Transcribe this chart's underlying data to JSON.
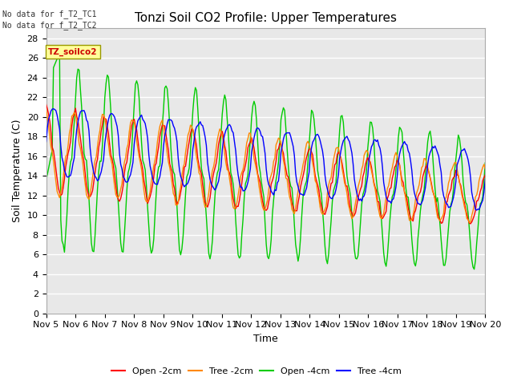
{
  "title": "Tonzi Soil CO2 Profile: Upper Temperatures",
  "xlabel": "Time",
  "ylabel": "Soil Temperature (C)",
  "ylim": [
    0,
    29
  ],
  "yticks": [
    0,
    2,
    4,
    6,
    8,
    10,
    12,
    14,
    16,
    18,
    20,
    22,
    24,
    26,
    28
  ],
  "xtick_labels": [
    "Nov 5",
    "Nov 6",
    "Nov 7",
    "Nov 8",
    "Nov 9",
    "Nov 10",
    "Nov 11",
    "Nov 12",
    "Nov 13",
    "Nov 14",
    "Nov 15",
    "Nov 16",
    "Nov 17",
    "Nov 18",
    "Nov 19",
    "Nov 20"
  ],
  "no_data_text1": "No data for f_T2_TC1",
  "no_data_text2": "No data for f_T2_TC2",
  "legend_box_label": "TZ_soilco2",
  "legend_box_color": "#ffff99",
  "legend_box_edgecolor": "#999900",
  "colors": {
    "open_2cm": "#ff0000",
    "tree_2cm": "#ff8800",
    "open_4cm": "#00cc00",
    "tree_4cm": "#0000ff"
  },
  "legend_labels": [
    "Open -2cm",
    "Tree -2cm",
    "Open -4cm",
    "Tree -4cm"
  ],
  "bg_color": "#e8e8e8",
  "grid_color": "#ffffff",
  "title_fontsize": 11,
  "axis_label_fontsize": 9,
  "tick_fontsize": 8
}
